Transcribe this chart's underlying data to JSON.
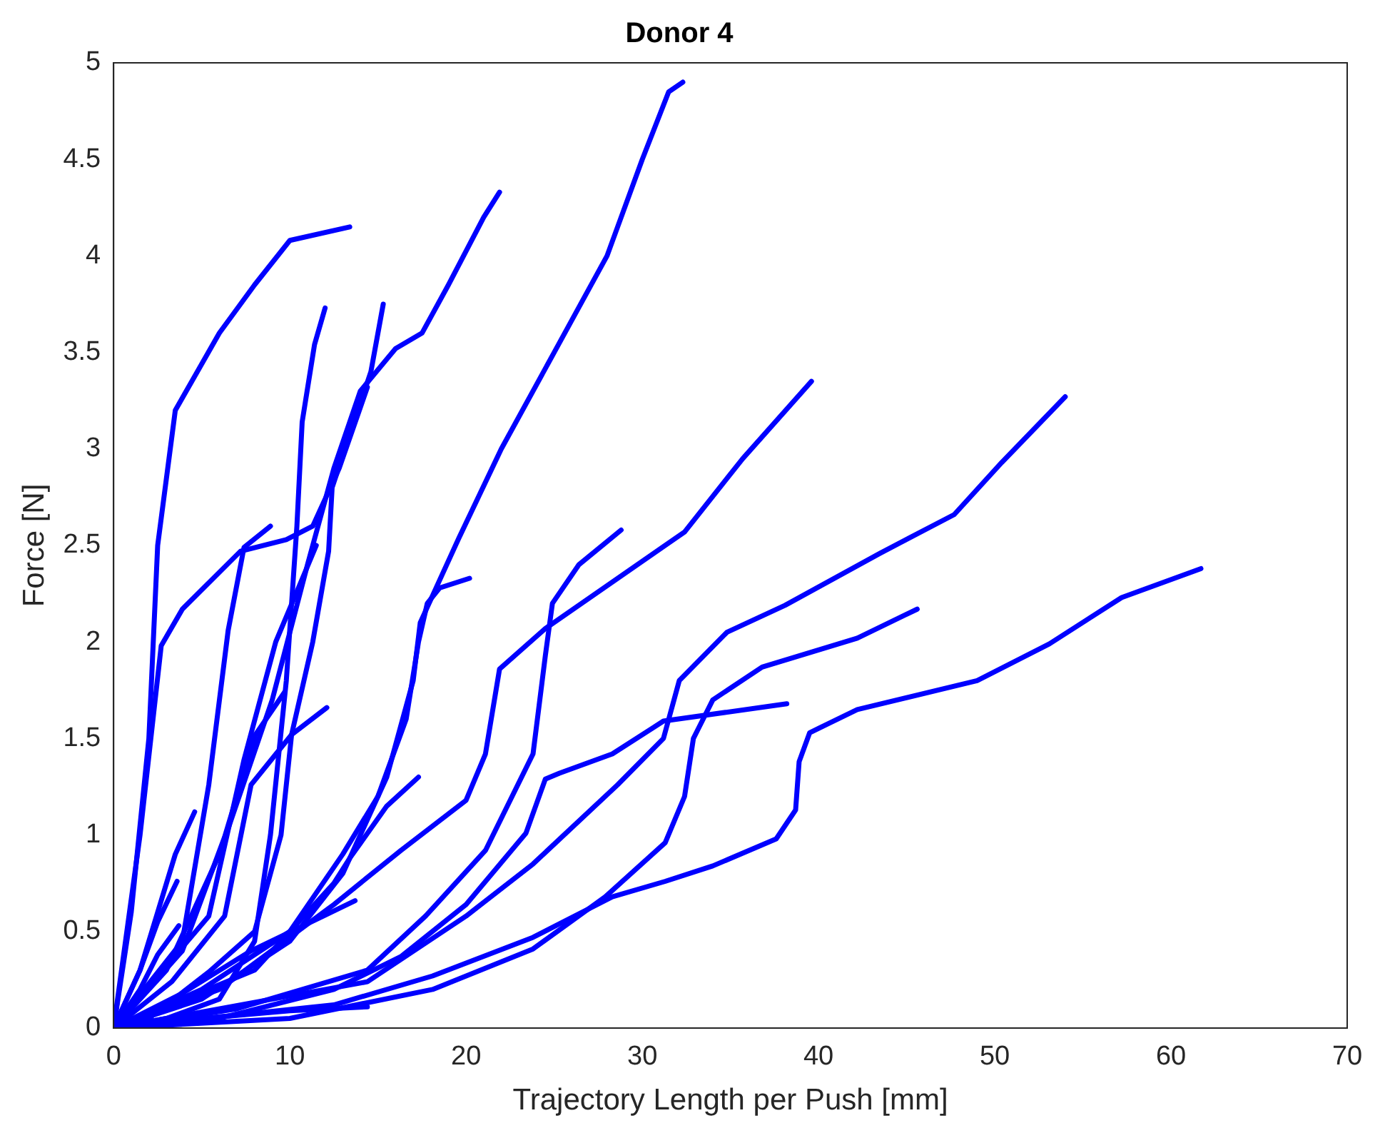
{
  "chart_data": {
    "type": "line",
    "title": "Donor 4",
    "xlabel": "Trajectory Length per Push [mm]",
    "ylabel": "Force [N]",
    "xlim": [
      0,
      70
    ],
    "ylim": [
      0,
      5
    ],
    "xticks": [
      0,
      10,
      20,
      30,
      40,
      50,
      60,
      70
    ],
    "yticks": [
      0,
      0.5,
      1,
      1.5,
      2,
      2.5,
      3,
      3.5,
      4,
      4.5,
      5
    ],
    "grid": false,
    "legend": false,
    "series": [
      {
        "color": "#0000ff",
        "x": [
          0,
          1,
          2,
          2.5,
          3.5,
          6,
          8,
          10,
          13.4
        ],
        "values": [
          0,
          0.6,
          1.5,
          2.5,
          3.2,
          3.6,
          3.85,
          4.08,
          4.15
        ]
      },
      {
        "color": "#0000ff",
        "x": [
          0,
          5,
          10,
          13,
          15.5,
          17,
          17.4,
          19.6,
          22,
          25,
          28,
          30,
          31.5,
          32.3
        ],
        "values": [
          0,
          0.15,
          0.45,
          0.8,
          1.3,
          1.8,
          2.1,
          2.54,
          3,
          3.5,
          4,
          4.5,
          4.85,
          4.9
        ]
      },
      {
        "color": "#0000ff",
        "x": [
          0,
          3,
          6,
          9,
          11,
          12.5,
          14,
          16,
          17.5,
          19,
          21,
          21.9
        ],
        "values": [
          0,
          0.3,
          0.9,
          1.7,
          2.4,
          2.9,
          3.3,
          3.52,
          3.6,
          3.85,
          4.2,
          4.33
        ]
      },
      {
        "color": "#0000ff",
        "x": [
          0,
          3,
          6,
          8,
          8.9,
          9.8,
          10.4,
          10.7,
          11.4,
          12
        ],
        "values": [
          0,
          0.05,
          0.15,
          0.45,
          1,
          1.8,
          2.6,
          3.14,
          3.54,
          3.73
        ]
      },
      {
        "color": "#0000ff",
        "x": [
          0,
          2,
          5.4,
          8,
          9.5,
          10.1,
          11.3,
          12.2,
          12.4,
          13.5,
          14.6,
          15.3
        ],
        "values": [
          0,
          0.05,
          0.29,
          0.5,
          1,
          1.52,
          2,
          2.47,
          2.8,
          3.1,
          3.4,
          3.75
        ]
      },
      {
        "color": "#0000ff",
        "x": [
          0,
          1.5,
          2.7,
          3.9,
          7.2,
          9.8,
          11.3,
          12.8,
          14.4
        ],
        "values": [
          0,
          1,
          1.98,
          2.17,
          2.47,
          2.53,
          2.6,
          2.9,
          3.32
        ]
      },
      {
        "color": "#0000ff",
        "x": [
          0,
          3.9,
          5.4,
          6.5,
          7.4,
          8.9
        ],
        "values": [
          0,
          0.45,
          1.26,
          2.06,
          2.49,
          2.6
        ]
      },
      {
        "color": "#0000ff",
        "x": [
          0,
          5.4,
          7.4,
          9.2,
          11.5
        ],
        "values": [
          0,
          0.58,
          1.39,
          2,
          2.5
        ]
      },
      {
        "color": "#0000ff",
        "x": [
          0,
          3.9,
          6.3,
          8.05,
          9.7
        ],
        "values": [
          0,
          0.4,
          0.99,
          1.52,
          1.74
        ]
      },
      {
        "color": "#0000ff",
        "x": [
          0,
          3.3,
          6.3,
          7.8,
          10.1,
          12.1
        ],
        "values": [
          0,
          0.24,
          0.58,
          1.26,
          1.52,
          1.66
        ]
      },
      {
        "color": "#0000ff",
        "x": [
          0,
          1.5,
          2.5,
          3.5,
          4.6
        ],
        "values": [
          0,
          0.3,
          0.6,
          0.9,
          1.12
        ]
      },
      {
        "color": "#0000ff",
        "x": [
          0,
          1.5,
          2.5,
          3.6
        ],
        "values": [
          0,
          0.3,
          0.55,
          0.76
        ]
      },
      {
        "color": "#0000ff",
        "x": [
          0,
          1.5,
          2.5,
          3.7
        ],
        "values": [
          0,
          0.2,
          0.38,
          0.53
        ]
      },
      {
        "color": "#0000ff",
        "x": [
          0,
          4,
          8,
          12.5,
          13.4,
          15.5,
          17.3
        ],
        "values": [
          0,
          0.15,
          0.3,
          0.75,
          0.88,
          1.15,
          1.3
        ]
      },
      {
        "color": "#0000ff",
        "x": [
          0,
          3.9,
          7.8,
          11.9,
          13.7
        ],
        "values": [
          0,
          0.18,
          0.4,
          0.58,
          0.66
        ]
      },
      {
        "color": "#0000ff",
        "x": [
          0,
          5,
          10,
          14.4
        ],
        "values": [
          0,
          0.05,
          0.09,
          0.11
        ]
      },
      {
        "color": "#0000ff",
        "x": [
          0,
          5,
          10,
          13,
          15,
          16.6,
          17.3,
          17.8,
          18.5,
          20.2
        ],
        "values": [
          0,
          0.2,
          0.5,
          0.9,
          1.2,
          1.6,
          2,
          2.2,
          2.28,
          2.33
        ]
      },
      {
        "color": "#0000ff",
        "x": [
          0,
          7,
          14.4,
          17.7,
          21.1,
          23.8,
          24.5,
          24.9,
          26.4,
          28.8
        ],
        "values": [
          0,
          0.1,
          0.3,
          0.58,
          0.92,
          1.42,
          1.93,
          2.2,
          2.4,
          2.58
        ]
      },
      {
        "color": "#0000ff",
        "x": [
          0,
          6,
          12.5,
          16.3,
          20,
          21.1,
          21.9,
          24.5,
          32.4,
          35.7,
          39.6
        ],
        "values": [
          0,
          0.2,
          0.64,
          0.92,
          1.18,
          1.42,
          1.86,
          2.07,
          2.57,
          2.95,
          3.35
        ]
      },
      {
        "color": "#0000ff",
        "x": [
          0,
          6,
          12.5,
          16.3,
          20,
          23.4,
          24.5,
          25.3,
          28.3,
          31.2,
          38.2
        ],
        "values": [
          0,
          0.05,
          0.2,
          0.37,
          0.64,
          1.01,
          1.29,
          1.32,
          1.42,
          1.59,
          1.68
        ]
      },
      {
        "color": "#0000ff",
        "x": [
          0,
          10,
          18.1,
          23.8,
          27.9,
          31.3,
          32.4,
          32.9,
          34,
          36.8,
          42.2,
          45.6
        ],
        "values": [
          0,
          0.05,
          0.2,
          0.41,
          0.68,
          0.96,
          1.2,
          1.5,
          1.7,
          1.87,
          2.02,
          2.17
        ]
      },
      {
        "color": "#0000ff",
        "x": [
          0,
          14.4,
          20,
          23.8,
          28.6,
          31.2,
          31.5,
          32.1,
          34.8,
          38.1,
          43.5,
          47.7,
          50.4,
          54
        ],
        "values": [
          0,
          0.24,
          0.58,
          0.85,
          1.26,
          1.5,
          1.6,
          1.8,
          2.05,
          2.19,
          2.46,
          2.66,
          2.93,
          3.27
        ]
      },
      {
        "color": "#0000ff",
        "x": [
          0,
          12.5,
          18.1,
          23.8,
          28.3,
          31.3,
          34,
          37.6,
          38.7,
          38.9,
          39.5,
          42.2,
          49,
          53.1,
          57.2,
          61.7
        ],
        "values": [
          0,
          0.12,
          0.27,
          0.47,
          0.68,
          0.76,
          0.84,
          0.98,
          1.13,
          1.38,
          1.53,
          1.65,
          1.8,
          1.99,
          2.23,
          2.38
        ]
      }
    ]
  }
}
